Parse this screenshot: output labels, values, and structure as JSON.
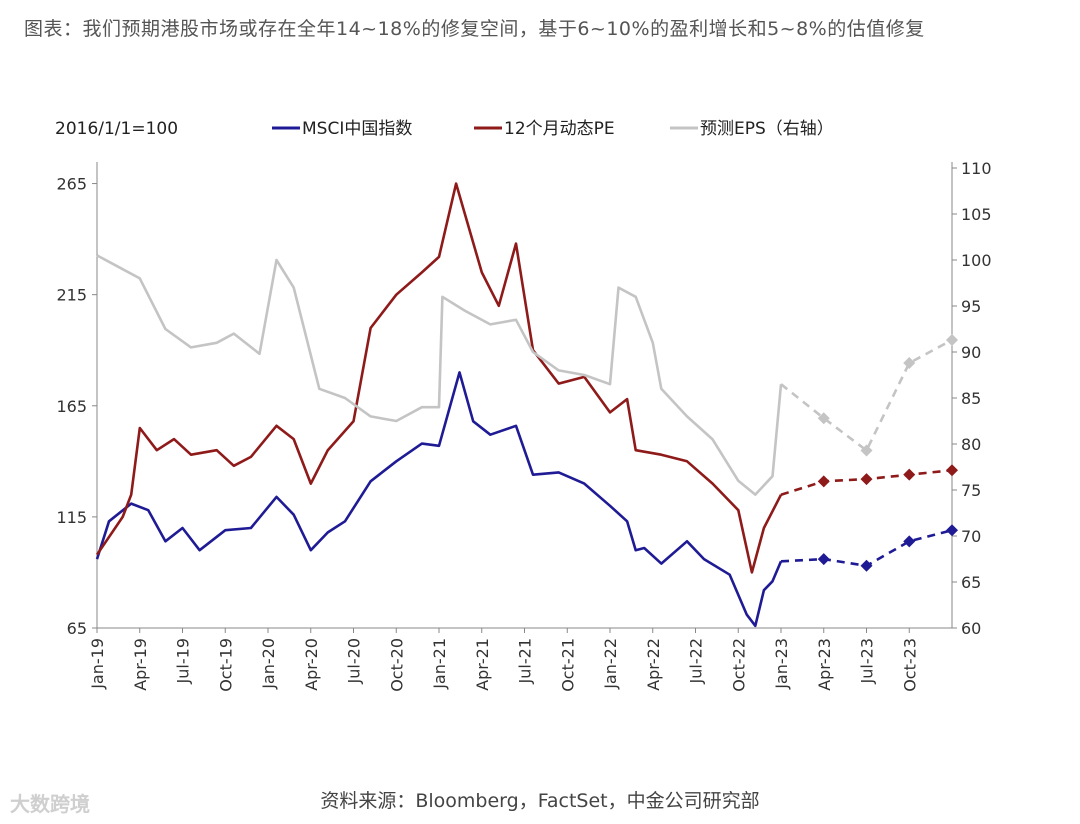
{
  "title": "图表：我们预期港股市场或存在全年14~18%的修复空间，基于6~10%的盈利增长和5~8%的估值修复",
  "source": "资料来源：Bloomberg，FactSet，中金公司研究部",
  "watermark": "大数跨境",
  "colors": {
    "msci": "#1f1b95",
    "pe": "#8e1a1a",
    "eps": "#c4c4c4"
  },
  "chart_data": {
    "type": "line",
    "index_label": "2016/1/1=100",
    "x_ticks": [
      "Jan-19",
      "Apr-19",
      "Jul-19",
      "Oct-19",
      "Jan-20",
      "Apr-20",
      "Jul-20",
      "Oct-20",
      "Jan-21",
      "Apr-21",
      "Jul-21",
      "Oct-21",
      "Jan-22",
      "Apr-22",
      "Jul-22",
      "Oct-22",
      "Jan-23",
      "Apr-23",
      "Jul-23",
      "Oct-23"
    ],
    "y_left_ticks": [
      65,
      115,
      165,
      215,
      265
    ],
    "y_left_range": [
      65,
      272
    ],
    "y_right_ticks": [
      60,
      65,
      70,
      75,
      80,
      85,
      90,
      95,
      100,
      105,
      110
    ],
    "y_right_range": [
      60,
      110
    ],
    "x_range": [
      2019.0,
      2024.0
    ],
    "series": [
      {
        "name": "MSCI中国指数",
        "axis": "left",
        "color": "#1f1b95",
        "actual": [
          [
            2019.0,
            96
          ],
          [
            2019.07,
            113
          ],
          [
            2019.2,
            121
          ],
          [
            2019.3,
            118
          ],
          [
            2019.4,
            104
          ],
          [
            2019.5,
            110
          ],
          [
            2019.6,
            100
          ],
          [
            2019.75,
            109
          ],
          [
            2019.9,
            110
          ],
          [
            2020.05,
            124
          ],
          [
            2020.15,
            116
          ],
          [
            2020.25,
            100
          ],
          [
            2020.35,
            108
          ],
          [
            2020.45,
            113
          ],
          [
            2020.6,
            131
          ],
          [
            2020.75,
            140
          ],
          [
            2020.9,
            148
          ],
          [
            2021.0,
            147
          ],
          [
            2021.12,
            180
          ],
          [
            2021.2,
            158
          ],
          [
            2021.3,
            152
          ],
          [
            2021.45,
            156
          ],
          [
            2021.55,
            134
          ],
          [
            2021.7,
            135
          ],
          [
            2021.85,
            130
          ],
          [
            2022.0,
            120
          ],
          [
            2022.1,
            113
          ],
          [
            2022.15,
            100
          ],
          [
            2022.2,
            101
          ],
          [
            2022.3,
            94
          ],
          [
            2022.45,
            104
          ],
          [
            2022.55,
            96
          ],
          [
            2022.7,
            89
          ],
          [
            2022.8,
            71
          ],
          [
            2022.85,
            66
          ],
          [
            2022.9,
            82
          ],
          [
            2022.95,
            86
          ],
          [
            2023.0,
            95
          ]
        ],
        "forecast": [
          [
            2023.0,
            95
          ],
          [
            2023.25,
            96
          ],
          [
            2023.5,
            93
          ],
          [
            2023.75,
            104
          ],
          [
            2024.0,
            109
          ]
        ]
      },
      {
        "name": "12个月动态PE",
        "axis": "left",
        "color": "#8e1a1a",
        "actual": [
          [
            2019.0,
            98
          ],
          [
            2019.15,
            115
          ],
          [
            2019.2,
            125
          ],
          [
            2019.25,
            155
          ],
          [
            2019.35,
            145
          ],
          [
            2019.45,
            150
          ],
          [
            2019.55,
            143
          ],
          [
            2019.7,
            145
          ],
          [
            2019.8,
            138
          ],
          [
            2019.9,
            142
          ],
          [
            2020.05,
            156
          ],
          [
            2020.15,
            150
          ],
          [
            2020.25,
            130
          ],
          [
            2020.35,
            145
          ],
          [
            2020.5,
            158
          ],
          [
            2020.6,
            200
          ],
          [
            2020.75,
            215
          ],
          [
            2020.9,
            225
          ],
          [
            2021.0,
            232
          ],
          [
            2021.1,
            265
          ],
          [
            2021.25,
            225
          ],
          [
            2021.35,
            210
          ],
          [
            2021.45,
            238
          ],
          [
            2021.55,
            190
          ],
          [
            2021.7,
            175
          ],
          [
            2021.85,
            178
          ],
          [
            2022.0,
            162
          ],
          [
            2022.1,
            168
          ],
          [
            2022.15,
            145
          ],
          [
            2022.3,
            143
          ],
          [
            2022.45,
            140
          ],
          [
            2022.6,
            130
          ],
          [
            2022.75,
            118
          ],
          [
            2022.83,
            90
          ],
          [
            2022.9,
            110
          ],
          [
            2023.0,
            125
          ]
        ],
        "forecast": [
          [
            2023.0,
            125
          ],
          [
            2023.25,
            131
          ],
          [
            2023.5,
            132
          ],
          [
            2023.75,
            134
          ],
          [
            2024.0,
            136
          ]
        ]
      },
      {
        "name": "预测EPS（右轴）",
        "axis": "right",
        "color": "#c4c4c4",
        "actual": [
          [
            2019.0,
            100.5
          ],
          [
            2019.15,
            99
          ],
          [
            2019.25,
            98
          ],
          [
            2019.4,
            92.5
          ],
          [
            2019.55,
            90.5
          ],
          [
            2019.7,
            91
          ],
          [
            2019.8,
            92
          ],
          [
            2019.95,
            89.8
          ],
          [
            2020.05,
            100
          ],
          [
            2020.15,
            97
          ],
          [
            2020.3,
            86
          ],
          [
            2020.45,
            85
          ],
          [
            2020.6,
            83
          ],
          [
            2020.75,
            82.5
          ],
          [
            2020.9,
            84
          ],
          [
            2021.0,
            84
          ],
          [
            2021.02,
            96
          ],
          [
            2021.15,
            94.5
          ],
          [
            2021.3,
            93
          ],
          [
            2021.45,
            93.5
          ],
          [
            2021.55,
            90
          ],
          [
            2021.7,
            88
          ],
          [
            2021.85,
            87.5
          ],
          [
            2022.0,
            86.5
          ],
          [
            2022.05,
            97
          ],
          [
            2022.15,
            96
          ],
          [
            2022.25,
            91
          ],
          [
            2022.3,
            86
          ],
          [
            2022.45,
            83
          ],
          [
            2022.6,
            80.5
          ],
          [
            2022.75,
            76
          ],
          [
            2022.85,
            74.5
          ],
          [
            2022.95,
            76.5
          ],
          [
            2023.0,
            86.5
          ]
        ],
        "forecast": [
          [
            2023.0,
            86.5
          ],
          [
            2023.25,
            82.8
          ],
          [
            2023.5,
            79.3
          ],
          [
            2023.75,
            88.8
          ],
          [
            2024.0,
            91.3
          ]
        ]
      }
    ]
  }
}
